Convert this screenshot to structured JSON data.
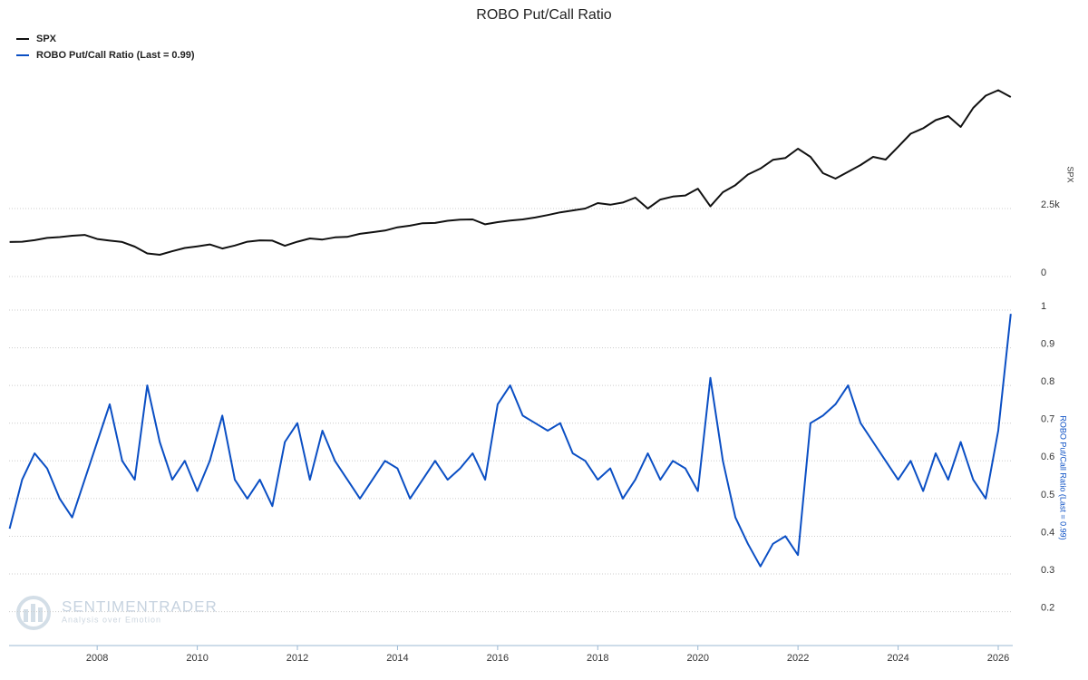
{
  "chart_data": [
    {
      "type": "line",
      "title": "ROBO Put/Call Ratio",
      "ylabel": "SPX",
      "x": [
        2006.25,
        2006.5,
        2006.75,
        2007,
        2007.25,
        2007.5,
        2007.75,
        2008,
        2008.25,
        2008.5,
        2008.75,
        2009,
        2009.25,
        2009.5,
        2009.75,
        2010,
        2010.25,
        2010.5,
        2010.75,
        2011,
        2011.25,
        2011.5,
        2011.75,
        2012,
        2012.25,
        2012.5,
        2012.75,
        2013,
        2013.25,
        2013.5,
        2013.75,
        2014,
        2014.25,
        2014.5,
        2014.75,
        2015,
        2015.25,
        2015.5,
        2015.75,
        2016,
        2016.25,
        2016.5,
        2016.75,
        2017,
        2017.25,
        2017.5,
        2017.75,
        2018,
        2018.25,
        2018.5,
        2018.75,
        2019,
        2019.25,
        2019.5,
        2019.75,
        2020,
        2020.25,
        2020.5,
        2020.75,
        2021,
        2021.25,
        2021.5,
        2021.75,
        2022,
        2022.25,
        2022.5,
        2022.75,
        2023,
        2023.25,
        2023.5,
        2023.75,
        2024,
        2024.25,
        2024.5,
        2024.75,
        2025,
        2025.25,
        2025.5,
        2025.75,
        2026,
        2026.25
      ],
      "series": [
        {
          "name": "SPX",
          "color": "#111111",
          "values": [
            1270,
            1280,
            1335,
            1420,
            1450,
            1500,
            1530,
            1380,
            1320,
            1270,
            1100,
            850,
            800,
            930,
            1050,
            1110,
            1180,
            1030,
            1140,
            1280,
            1330,
            1320,
            1130,
            1280,
            1400,
            1360,
            1440,
            1460,
            1570,
            1630,
            1690,
            1810,
            1870,
            1960,
            1970,
            2050,
            2090,
            2100,
            1920,
            2000,
            2060,
            2100,
            2170,
            2260,
            2360,
            2430,
            2500,
            2700,
            2640,
            2720,
            2900,
            2500,
            2830,
            2940,
            2980,
            3230,
            2580,
            3100,
            3360,
            3750,
            3970,
            4290,
            4360,
            4700,
            4400,
            3800,
            3600,
            3850,
            4100,
            4400,
            4300,
            4770,
            5250,
            5450,
            5750,
            5900,
            5500,
            6200,
            6650,
            6850,
            6600
          ]
        }
      ],
      "xlim": [
        2006.24,
        2026.29
      ],
      "ylim": [
        0,
        7500
      ],
      "yticks": [
        0,
        {
          "value": 2500,
          "label": "2.5k"
        }
      ],
      "grid": true
    },
    {
      "type": "line",
      "ylabel": "ROBO Put/Call Ratio (Last = 0.99)",
      "x": [
        2006.25,
        2006.5,
        2006.75,
        2007,
        2007.25,
        2007.5,
        2007.75,
        2008,
        2008.25,
        2008.5,
        2008.75,
        2009,
        2009.25,
        2009.5,
        2009.75,
        2010,
        2010.25,
        2010.5,
        2010.75,
        2011,
        2011.25,
        2011.5,
        2011.75,
        2012,
        2012.25,
        2012.5,
        2012.75,
        2013,
        2013.25,
        2013.5,
        2013.75,
        2014,
        2014.25,
        2014.5,
        2014.75,
        2015,
        2015.25,
        2015.5,
        2015.75,
        2016,
        2016.25,
        2016.5,
        2016.75,
        2017,
        2017.25,
        2017.5,
        2017.75,
        2018,
        2018.25,
        2018.5,
        2018.75,
        2019,
        2019.25,
        2019.5,
        2019.75,
        2020,
        2020.25,
        2020.5,
        2020.75,
        2021,
        2021.25,
        2021.5,
        2021.75,
        2022,
        2022.25,
        2022.5,
        2022.75,
        2023,
        2023.25,
        2023.5,
        2023.75,
        2024,
        2024.25,
        2024.5,
        2024.75,
        2025,
        2025.25,
        2025.5,
        2025.75,
        2026,
        2026.25
      ],
      "series": [
        {
          "name": "ROBO Put/Call Ratio (Last = 0.99)",
          "color": "#0b4fc4",
          "values": [
            0.42,
            0.55,
            0.62,
            0.58,
            0.5,
            0.45,
            0.55,
            0.65,
            0.75,
            0.6,
            0.55,
            0.8,
            0.65,
            0.55,
            0.6,
            0.52,
            0.6,
            0.72,
            0.55,
            0.5,
            0.55,
            0.48,
            0.65,
            0.7,
            0.55,
            0.68,
            0.6,
            0.55,
            0.5,
            0.55,
            0.6,
            0.58,
            0.5,
            0.55,
            0.6,
            0.55,
            0.58,
            0.62,
            0.55,
            0.75,
            0.8,
            0.72,
            0.7,
            0.68,
            0.7,
            0.62,
            0.6,
            0.55,
            0.58,
            0.5,
            0.55,
            0.62,
            0.55,
            0.6,
            0.58,
            0.52,
            0.82,
            0.6,
            0.45,
            0.38,
            0.32,
            0.38,
            0.4,
            0.35,
            0.7,
            0.72,
            0.75,
            0.8,
            0.7,
            0.65,
            0.6,
            0.55,
            0.6,
            0.52,
            0.62,
            0.55,
            0.65,
            0.55,
            0.5,
            0.68,
            0.99
          ]
        }
      ],
      "xlim": [
        2006.24,
        2026.29
      ],
      "ylim": [
        0.11,
        1
      ],
      "yticks": [
        0.2,
        0.3,
        0.4,
        0.5,
        0.6,
        0.7,
        0.8,
        0.9,
        1
      ],
      "xticks": [
        2008,
        2010,
        2012,
        2014,
        2016,
        2018,
        2020,
        2022,
        2024,
        2026
      ],
      "grid": true
    }
  ],
  "watermark": {
    "name": "SENTIMENTRADER",
    "tagline": "Analysis over Emotion"
  }
}
